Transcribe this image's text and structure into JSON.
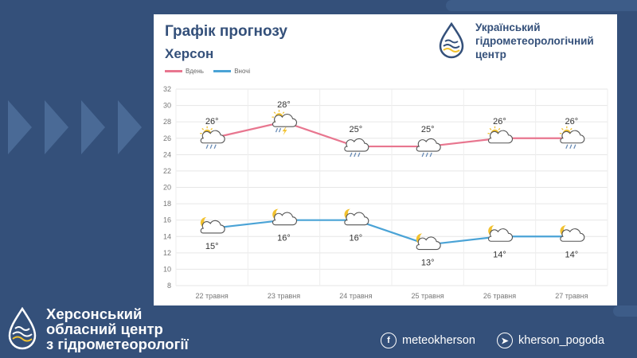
{
  "card": {
    "title": "Графік прогнозу",
    "subtitle": "Херсон"
  },
  "org_top": {
    "line1": "Український",
    "line2": "гідрометеорологічний",
    "line3": "центр"
  },
  "legend": {
    "day_label": "Вдень",
    "night_label": "Вночі"
  },
  "colors": {
    "day": "#e8768f",
    "night": "#4aa3d6",
    "brand": "#34507a",
    "accent": "#f2c230"
  },
  "chart_data": {
    "type": "line",
    "categories": [
      "22 травня",
      "23 травня",
      "24 травня",
      "25 травня",
      "26 травня",
      "27 травня"
    ],
    "series": [
      {
        "name": "Вдень",
        "values": [
          26,
          28,
          25,
          25,
          26,
          26
        ],
        "labels": [
          "26°",
          "28°",
          "25°",
          "25°",
          "26°",
          "26°"
        ],
        "icons": [
          "sun-cloud-rain-icon",
          "sun-cloud-thunder-icon",
          "cloud-rain-icon",
          "cloud-rain-icon",
          "sun-cloud-icon",
          "sun-cloud-rain-icon"
        ]
      },
      {
        "name": "Вночі",
        "values": [
          15,
          16,
          16,
          13,
          14,
          14
        ],
        "labels": [
          "15°",
          "16°",
          "16°",
          "13°",
          "14°",
          "14°"
        ],
        "icons": [
          "moon-cloud-icon",
          "moon-cloud-icon",
          "moon-cloud-icon",
          "moon-cloud-icon",
          "moon-cloud-icon",
          "moon-cloud-icon"
        ]
      }
    ],
    "yticks": [
      8,
      10,
      12,
      14,
      16,
      18,
      20,
      22,
      24,
      26,
      28,
      30,
      32
    ],
    "ylim": [
      8,
      32
    ],
    "grid": true,
    "legend_position": "top-left"
  },
  "footer": {
    "org_line1": "Херсонський",
    "org_line2": "обласний центр",
    "org_line3": "з гідрометеорології",
    "facebook": "meteokherson",
    "telegram": "kherson_pogoda"
  }
}
